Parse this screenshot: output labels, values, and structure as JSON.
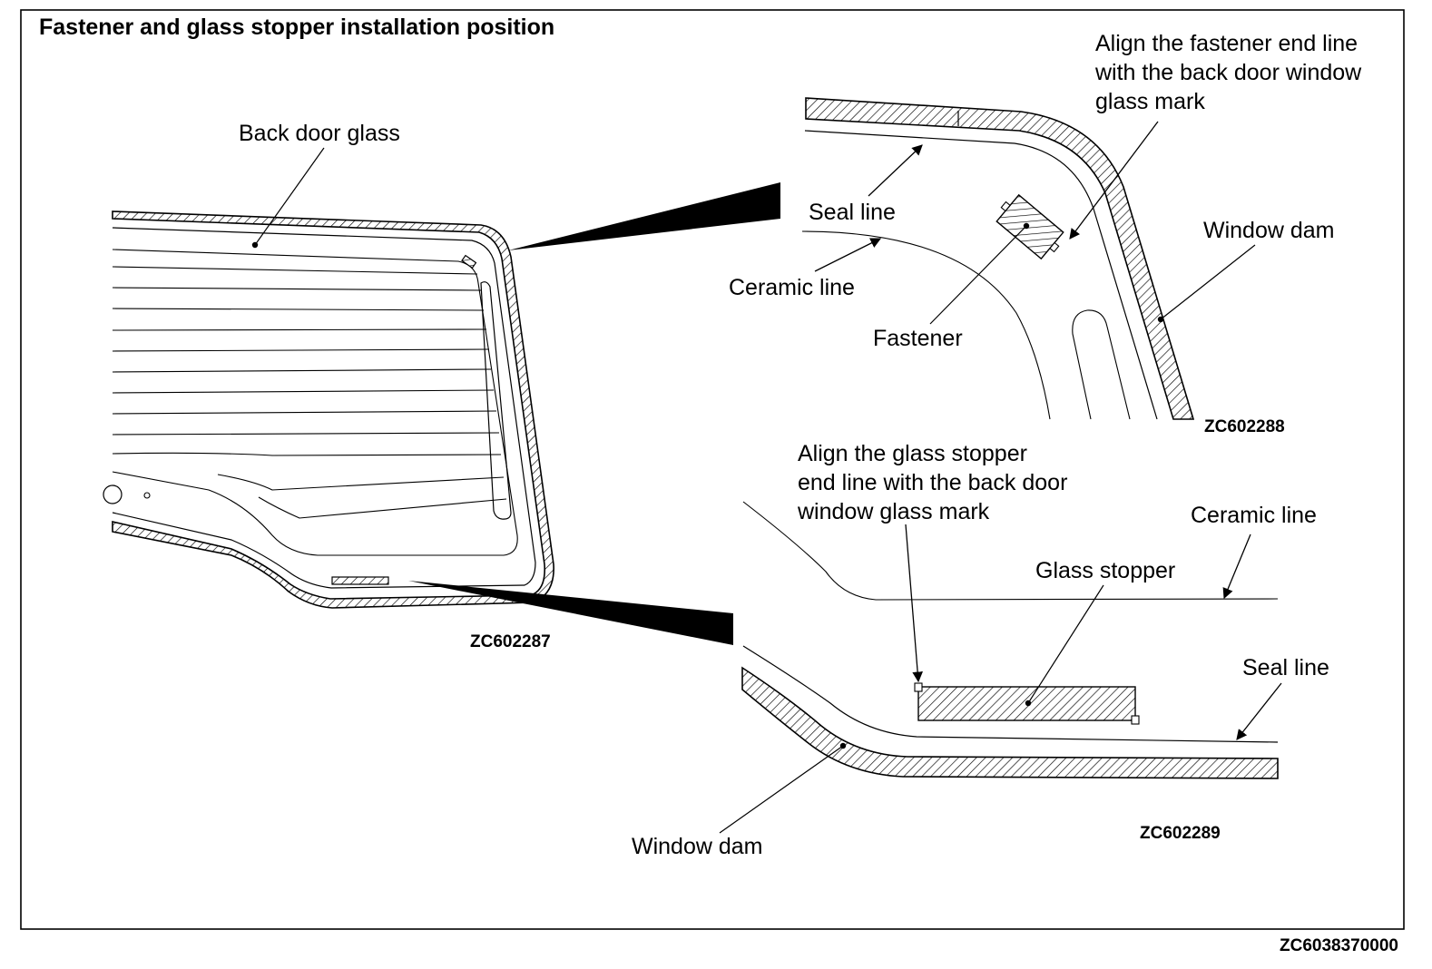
{
  "title": "Fastener and glass stopper installation position",
  "figure_code": "ZC6038370000",
  "overview": {
    "code": "ZC602287",
    "labels": {
      "back_door_glass": "Back door glass"
    }
  },
  "detail_top": {
    "code": "ZC602288",
    "labels": {
      "align_note": "Align the fastener end line\nwith the back door window\nglass mark",
      "seal_line": "Seal line",
      "ceramic_line": "Ceramic line",
      "fastener": "Fastener",
      "window_dam": "Window dam"
    }
  },
  "detail_bottom": {
    "code": "ZC602289",
    "labels": {
      "align_note": "Align the glass stopper\nend line with the back door\nwindow glass mark",
      "ceramic_line": "Ceramic line",
      "glass_stopper": "Glass stopper",
      "seal_line": "Seal line",
      "window_dam": "Window dam"
    }
  }
}
